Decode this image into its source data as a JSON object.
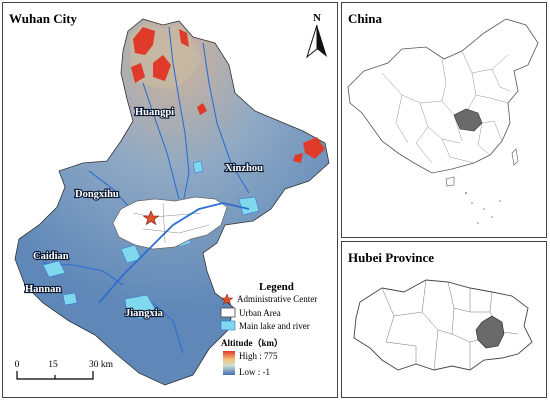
{
  "main": {
    "title": "Wuhan City",
    "north": "N",
    "districts": [
      {
        "name": "Huangpi"
      },
      {
        "name": "Xinzhou"
      },
      {
        "name": "Dongxihu"
      },
      {
        "name": "Caidian"
      },
      {
        "name": "Hannan"
      },
      {
        "name": "Jiangxia"
      }
    ]
  },
  "legend": {
    "title": "Legend",
    "items": [
      "Administrative Center",
      "Urban Area",
      "Main lake and river"
    ],
    "altitude_title": "Altitude（km）",
    "high": "High : 775",
    "low": "Low : -1"
  },
  "scalebar": {
    "ticks": [
      "0",
      "15",
      "30 km"
    ]
  },
  "china": {
    "title": "China"
  },
  "hubei": {
    "title": "Hubei Province"
  },
  "colors": {
    "terrain_low": "#5f88b8",
    "terrain_mid": "#8fa9c4",
    "terrain_high": "#e03a2a",
    "water": "#7fd8ee",
    "urban": "#ffffff",
    "highlight": "#6a6a6a"
  }
}
